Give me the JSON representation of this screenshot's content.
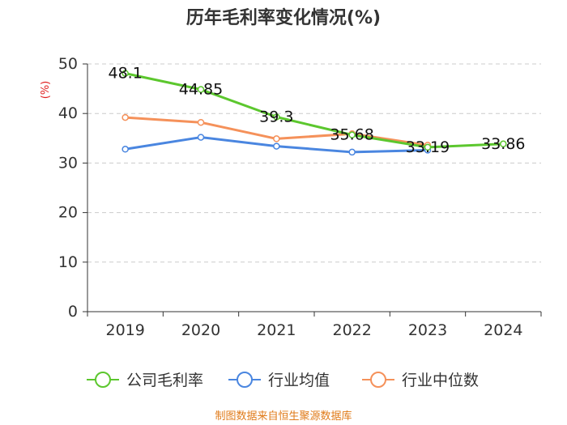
{
  "chart_data": {
    "type": "line",
    "title": "历年毛利率变化情况(%)",
    "ylabel": "(%)",
    "xlabel": "",
    "categories": [
      "2019",
      "2020",
      "2021",
      "2022",
      "2023",
      "2024"
    ],
    "ylim": [
      0,
      50
    ],
    "yticks": [
      0,
      10,
      20,
      30,
      40,
      50
    ],
    "grid": true,
    "legend_position": "bottom",
    "series": [
      {
        "name": "公司毛利率",
        "color": "#5cc72e",
        "values": [
          48.1,
          44.85,
          39.3,
          35.68,
          33.19,
          33.86
        ],
        "labels": [
          "48.1",
          "44.85",
          "39.3",
          "35.68",
          "33.19",
          "33.86"
        ]
      },
      {
        "name": "行业均值",
        "color": "#4a86e0",
        "values": [
          32.8,
          35.2,
          33.4,
          32.2,
          32.6,
          null
        ]
      },
      {
        "name": "行业中位数",
        "color": "#f5915a",
        "values": [
          39.2,
          38.2,
          34.9,
          35.9,
          33.6,
          null
        ]
      }
    ]
  },
  "source": "制图数据来自恒生聚源数据库"
}
